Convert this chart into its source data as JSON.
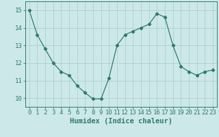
{
  "x": [
    0,
    1,
    2,
    3,
    4,
    5,
    6,
    7,
    8,
    9,
    10,
    11,
    12,
    13,
    14,
    15,
    16,
    17,
    18,
    19,
    20,
    21,
    22,
    23
  ],
  "y": [
    15.0,
    13.6,
    12.8,
    12.0,
    11.5,
    11.3,
    10.7,
    10.3,
    9.95,
    9.95,
    11.15,
    13.0,
    13.6,
    13.8,
    14.0,
    14.2,
    14.8,
    14.6,
    13.0,
    11.8,
    11.5,
    11.3,
    11.5,
    11.6
  ],
  "line_color": "#2d7b6e",
  "marker": "D",
  "marker_size": 2.2,
  "bg_color": "#cde8e8",
  "grid_color": "#aed0d0",
  "xlabel": "Humidex (Indice chaleur)",
  "xlabel_fontsize": 7.5,
  "tick_color": "#2d7b6e",
  "ylim": [
    9.5,
    15.5
  ],
  "yticks": [
    10,
    11,
    12,
    13,
    14,
    15
  ],
  "xticks": [
    0,
    1,
    2,
    3,
    4,
    5,
    6,
    7,
    8,
    9,
    10,
    11,
    12,
    13,
    14,
    15,
    16,
    17,
    18,
    19,
    20,
    21,
    22,
    23
  ],
  "tick_label_fontsize": 6.5
}
